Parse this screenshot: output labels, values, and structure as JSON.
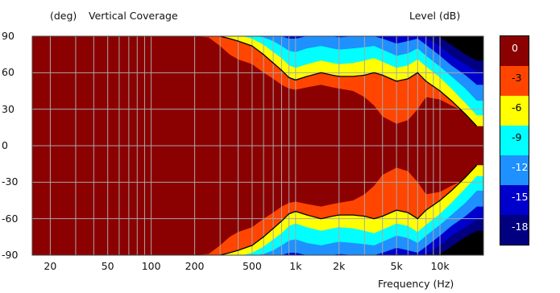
{
  "chart_data": {
    "type": "heatmap",
    "title": "Vertical Coverage",
    "y_unit_label": "(deg)",
    "colorbar_title": "Level  (dB)",
    "xlabel": "Frequency  (Hz)",
    "x_scale": "log",
    "xlim": [
      15,
      20000
    ],
    "ylim": [
      -90,
      90
    ],
    "grid": true,
    "x_ticks": [
      {
        "value": 20,
        "label": "20"
      },
      {
        "value": 50,
        "label": "50"
      },
      {
        "value": 100,
        "label": "100"
      },
      {
        "value": 200,
        "label": "200"
      },
      {
        "value": 500,
        "label": "500"
      },
      {
        "value": 1000,
        "label": "1k"
      },
      {
        "value": 2000,
        "label": "2k"
      },
      {
        "value": 5000,
        "label": "5k"
      },
      {
        "value": 10000,
        "label": "10k"
      }
    ],
    "y_ticks": [
      90,
      60,
      30,
      0,
      -30,
      -60,
      -90
    ],
    "colorbar": [
      {
        "label": "0",
        "color": "#8b0000"
      },
      {
        "label": "-3",
        "color": "#ff4500"
      },
      {
        "label": "-6",
        "color": "#ffff00"
      },
      {
        "label": "-9",
        "color": "#00ffff"
      },
      {
        "label": "-12",
        "color": "#1e90ff"
      },
      {
        "label": "-15",
        "color": "#0000cd"
      },
      {
        "label": "-18",
        "color": "#000080"
      }
    ],
    "below_range_color": "#000000",
    "contour_levels_db": [
      -6
    ],
    "frequencies_hz": [
      200,
      250,
      300,
      350,
      400,
      500,
      600,
      700,
      800,
      900,
      1000,
      1200,
      1500,
      1800,
      2000,
      2500,
      3000,
      3500,
      4000,
      5000,
      6000,
      7000,
      8000,
      10000,
      12000,
      15000,
      18000
    ],
    "iso_db_contours_angle_deg": [
      {
        "level_db": -3,
        "angle": [
          90,
          89,
          82,
          75,
          71,
          67,
          60,
          55,
          50,
          47,
          46,
          48,
          50,
          48,
          47,
          45,
          40,
          33,
          24,
          18,
          21,
          30,
          40,
          38,
          33,
          28,
          27
        ]
      },
      {
        "level_db": -6,
        "angle": [
          90,
          90,
          90,
          88,
          86,
          82,
          75,
          68,
          62,
          56,
          54,
          57,
          60,
          58,
          57,
          57,
          58,
          60,
          58,
          53,
          55,
          60,
          53,
          45,
          37,
          26,
          16
        ]
      },
      {
        "level_db": -9,
        "angle": [
          91,
          91,
          91,
          91,
          91,
          88,
          83,
          77,
          72,
          66,
          64,
          67,
          70,
          68,
          67,
          68,
          70,
          72,
          69,
          64,
          66,
          71,
          65,
          56,
          47,
          35,
          25
        ]
      },
      {
        "level_db": -12,
        "angle": [
          91,
          91,
          91,
          91,
          91,
          91,
          89,
          86,
          82,
          78,
          77,
          80,
          82,
          80,
          79,
          80,
          81,
          82,
          79,
          74,
          76,
          80,
          74,
          65,
          57,
          47,
          37
        ]
      },
      {
        "level_db": -15,
        "angle": [
          91,
          91,
          91,
          91,
          91,
          91,
          91,
          91,
          90,
          88,
          88,
          90,
          91,
          90,
          89,
          90,
          90,
          90,
          88,
          84,
          86,
          88,
          83,
          74,
          66,
          58,
          50
        ]
      },
      {
        "level_db": -18,
        "angle": [
          91,
          91,
          91,
          91,
          91,
          91,
          91,
          91,
          91,
          91,
          91,
          91,
          91,
          91,
          91,
          91,
          91,
          91,
          91,
          90,
          91,
          91,
          89,
          82,
          74,
          67,
          61
        ]
      },
      {
        "level_db": -21,
        "angle": [
          91,
          91,
          91,
          91,
          91,
          91,
          91,
          91,
          91,
          91,
          91,
          91,
          91,
          91,
          91,
          91,
          91,
          91,
          91,
          91,
          91,
          91,
          91,
          89,
          83,
          75,
          70
        ]
      }
    ]
  }
}
